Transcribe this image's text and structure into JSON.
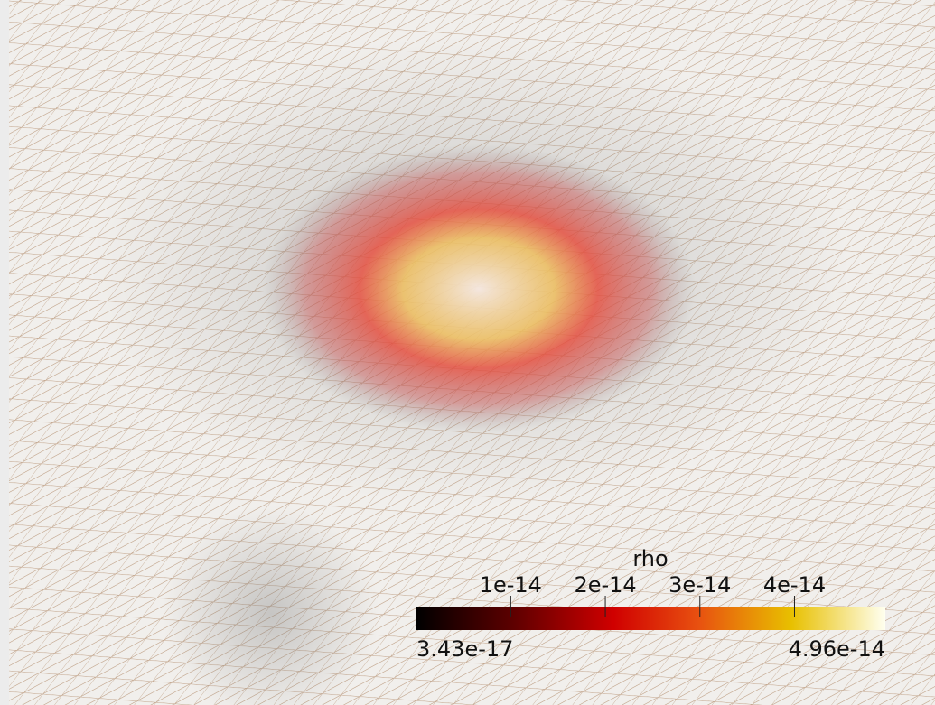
{
  "colorbar": {
    "title": "rho",
    "range": [
      3.43e-17,
      4.96e-14
    ],
    "ticks": [
      1e-14,
      2e-14,
      3e-14,
      4e-14
    ]
  }
}
